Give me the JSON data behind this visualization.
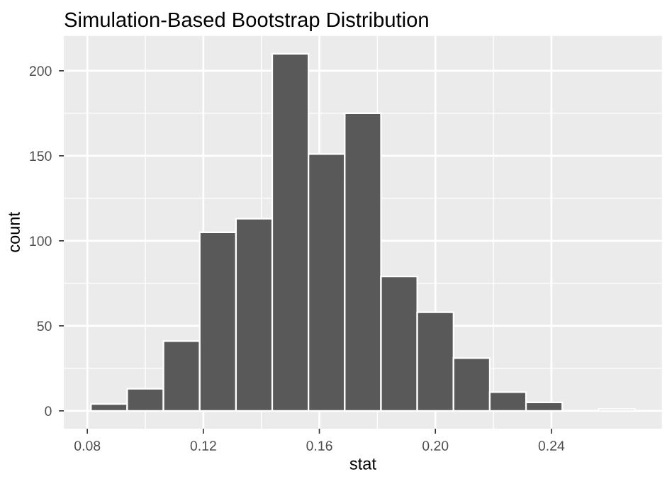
{
  "chart_data": {
    "type": "histogram",
    "title": "Simulation-Based Bootstrap Distribution",
    "xlabel": "stat",
    "ylabel": "count",
    "bins": [
      0.08125,
      0.09375,
      0.10625,
      0.11875,
      0.13125,
      0.14375,
      0.15625,
      0.16875,
      0.18125,
      0.19375,
      0.20625,
      0.21875,
      0.23125,
      0.24375,
      0.25625,
      0.26875
    ],
    "values": [
      4,
      13,
      41,
      105,
      113,
      210,
      151,
      175,
      79,
      58,
      31,
      11,
      5,
      0,
      1
    ],
    "color": "#595959",
    "xlim": [
      0.0719,
      0.2781
    ],
    "xticks": [
      {
        "value": 0.08,
        "label": "0.08"
      },
      {
        "value": 0.12,
        "label": "0.12"
      },
      {
        "value": 0.16,
        "label": "0.16"
      },
      {
        "value": 0.2,
        "label": "0.20"
      },
      {
        "value": 0.24,
        "label": "0.24"
      }
    ],
    "ylim": [
      -10.5,
      220.5
    ],
    "yticks": [
      0,
      50,
      100,
      150,
      200
    ],
    "grid": true
  }
}
